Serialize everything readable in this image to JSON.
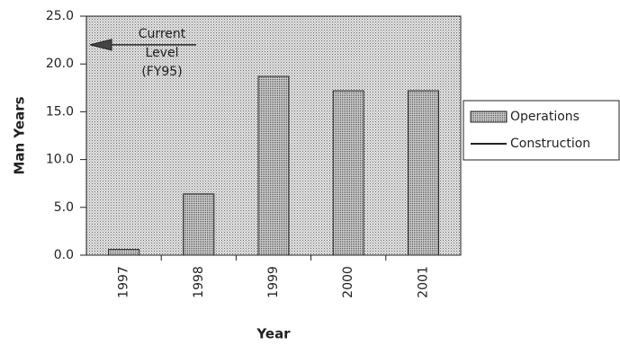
{
  "chart_data": {
    "type": "bar",
    "x_label": "Year",
    "y_label": "Man Years",
    "categories": [
      "1997",
      "1998",
      "1999",
      "2000",
      "2001"
    ],
    "series": [
      {
        "name": "Operations",
        "color": "#a8a8a8",
        "values": [
          0.6,
          6.4,
          18.7,
          17.2,
          17.2
        ]
      },
      {
        "name": "Construction",
        "color": "#222222",
        "values": [
          null,
          null,
          null,
          null,
          null
        ]
      }
    ],
    "ylim": [
      0,
      25
    ],
    "yticks": [
      {
        "value": 0,
        "label": "0.0"
      },
      {
        "value": 5,
        "label": "5.0"
      },
      {
        "value": 10,
        "label": "10.0"
      },
      {
        "value": 15,
        "label": "15.0"
      },
      {
        "value": 20,
        "label": "20.0"
      },
      {
        "value": 25,
        "label": "25.0"
      }
    ],
    "grid": false,
    "annotation": {
      "lines": [
        "Current",
        "Level",
        "(FY95)"
      ],
      "value": 22
    }
  }
}
